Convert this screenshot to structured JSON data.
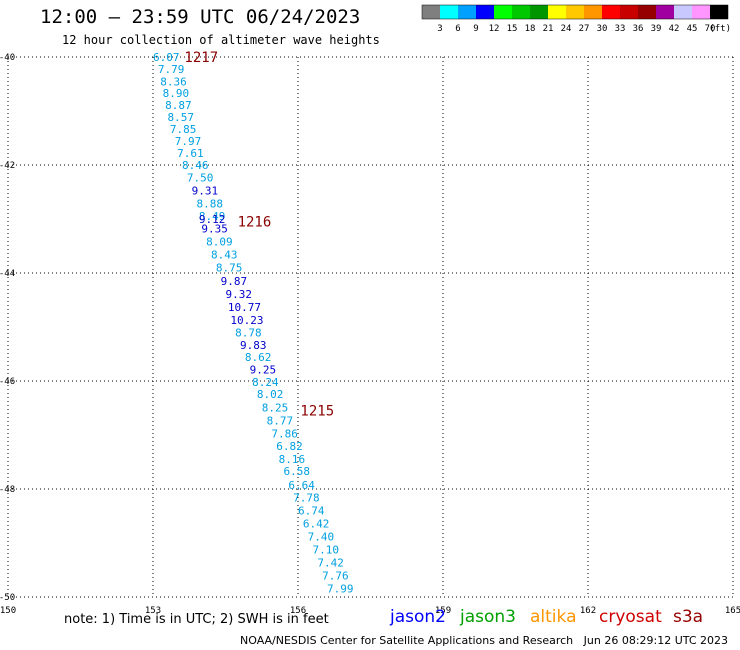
{
  "header": {
    "title": "12:00 — 23:59 UTC 06/24/2023",
    "subtitle": "12 hour collection of altimeter wave heights"
  },
  "legend": {
    "unit": "(ft)",
    "levels": [
      "3",
      "6",
      "9",
      "12",
      "15",
      "18",
      "21",
      "24",
      "27",
      "30",
      "33",
      "36",
      "39",
      "42",
      "45",
      "70"
    ],
    "colors": [
      "#7f7f7f",
      "#00ffff",
      "#00a0ff",
      "#0000ff",
      "#00ff00",
      "#00c800",
      "#009600",
      "#ffff00",
      "#ffc800",
      "#ff9600",
      "#ff0000",
      "#c80000",
      "#960000",
      "#a000a0",
      "#c8c8ff",
      "#ff96ff",
      "#000000"
    ]
  },
  "map": {
    "lon_ticks": [
      "150",
      "153",
      "156",
      "159",
      "162",
      "165"
    ],
    "lat_ticks": [
      "-40",
      "-42",
      "-44",
      "-46",
      "-48",
      "-50"
    ],
    "track_labels": [
      {
        "text": "1217",
        "lon": 153.65,
        "lat": -40.0
      },
      {
        "text": "1216",
        "lon": 154.75,
        "lat": -43.05
      },
      {
        "text": "1215",
        "lon": 156.05,
        "lat": -46.55
      }
    ],
    "wave_heights": [
      {
        "v": "6.07",
        "lon": 153.0,
        "lat": -40.0,
        "color": "#00a0e0"
      },
      {
        "v": "7.79",
        "lon": 153.1,
        "lat": -40.22,
        "color": "#00a0e0"
      },
      {
        "v": "8.36",
        "lon": 153.15,
        "lat": -40.45,
        "color": "#00a0e0"
      },
      {
        "v": "8.90",
        "lon": 153.2,
        "lat": -40.67,
        "color": "#00a0e0"
      },
      {
        "v": "8.87",
        "lon": 153.25,
        "lat": -40.89,
        "color": "#00a0e0"
      },
      {
        "v": "8.57",
        "lon": 153.3,
        "lat": -41.11,
        "color": "#00a0e0"
      },
      {
        "v": "7.85",
        "lon": 153.35,
        "lat": -41.33,
        "color": "#00a0e0"
      },
      {
        "v": "7.97",
        "lon": 153.45,
        "lat": -41.56,
        "color": "#00a0e0"
      },
      {
        "v": "7.61",
        "lon": 153.5,
        "lat": -41.78,
        "color": "#00a0e0"
      },
      {
        "v": "8.46",
        "lon": 153.6,
        "lat": -42.0,
        "color": "#00a0e0"
      },
      {
        "v": "7.50",
        "lon": 153.7,
        "lat": -42.23,
        "color": "#00a0e0"
      },
      {
        "v": "9.31",
        "lon": 153.8,
        "lat": -42.47,
        "color": "#0000cc"
      },
      {
        "v": "8.88",
        "lon": 153.9,
        "lat": -42.71,
        "color": "#00a0e0"
      },
      {
        "v": "8.49",
        "lon": 153.95,
        "lat": -42.94,
        "color": "#00a0e0"
      },
      {
        "v": "9.12",
        "lon": 153.95,
        "lat": -43.0,
        "color": "#0000cc"
      },
      {
        "v": "9.35",
        "lon": 154.0,
        "lat": -43.18,
        "color": "#0000cc"
      },
      {
        "v": "8.09",
        "lon": 154.1,
        "lat": -43.42,
        "color": "#00a0e0"
      },
      {
        "v": "8.43",
        "lon": 154.2,
        "lat": -43.66,
        "color": "#00a0e0"
      },
      {
        "v": "8.75",
        "lon": 154.3,
        "lat": -43.9,
        "color": "#00a0e0"
      },
      {
        "v": "9.87",
        "lon": 154.4,
        "lat": -44.15,
        "color": "#0000cc"
      },
      {
        "v": "9.32",
        "lon": 154.5,
        "lat": -44.39,
        "color": "#0000cc"
      },
      {
        "v": "10.77",
        "lon": 154.55,
        "lat": -44.63,
        "color": "#0000cc"
      },
      {
        "v": "10.23",
        "lon": 154.6,
        "lat": -44.87,
        "color": "#0000cc"
      },
      {
        "v": "8.78",
        "lon": 154.7,
        "lat": -45.1,
        "color": "#00a0e0"
      },
      {
        "v": "9.83",
        "lon": 154.8,
        "lat": -45.33,
        "color": "#0000cc"
      },
      {
        "v": "8.62",
        "lon": 154.9,
        "lat": -45.56,
        "color": "#00a0e0"
      },
      {
        "v": "9.25",
        "lon": 155.0,
        "lat": -45.79,
        "color": "#0000cc"
      },
      {
        "v": "8.24",
        "lon": 155.05,
        "lat": -46.02,
        "color": "#00a0e0"
      },
      {
        "v": "8.02",
        "lon": 155.15,
        "lat": -46.24,
        "color": "#00a0e0"
      },
      {
        "v": "8.25",
        "lon": 155.25,
        "lat": -46.49,
        "color": "#00a0e0"
      },
      {
        "v": "8.77",
        "lon": 155.35,
        "lat": -46.73,
        "color": "#00a0e0"
      },
      {
        "v": "7.86",
        "lon": 155.45,
        "lat": -46.97,
        "color": "#00a0e0"
      },
      {
        "v": "6.82",
        "lon": 155.55,
        "lat": -47.2,
        "color": "#00a0e0"
      },
      {
        "v": "8.16",
        "lon": 155.6,
        "lat": -47.44,
        "color": "#00a0e0"
      },
      {
        "v": "6.58",
        "lon": 155.7,
        "lat": -47.67,
        "color": "#00a0e0"
      },
      {
        "v": "6.64",
        "lon": 155.8,
        "lat": -47.93,
        "color": "#00a0e0"
      },
      {
        "v": "7.78",
        "lon": 155.9,
        "lat": -48.16,
        "color": "#00a0e0"
      },
      {
        "v": "6.74",
        "lon": 156.0,
        "lat": -48.4,
        "color": "#00a0e0"
      },
      {
        "v": "6.42",
        "lon": 156.1,
        "lat": -48.64,
        "color": "#00a0e0"
      },
      {
        "v": "7.40",
        "lon": 156.2,
        "lat": -48.88,
        "color": "#00a0e0"
      },
      {
        "v": "7.10",
        "lon": 156.3,
        "lat": -49.12,
        "color": "#00a0e0"
      },
      {
        "v": "7.42",
        "lon": 156.4,
        "lat": -49.36,
        "color": "#00a0e0"
      },
      {
        "v": "7.76",
        "lon": 156.5,
        "lat": -49.6,
        "color": "#00a0e0"
      },
      {
        "v": "7.99",
        "lon": 156.6,
        "lat": -49.84,
        "color": "#00a0e0"
      }
    ]
  },
  "note": "note: 1) Time is in UTC; 2) SWH is in feet",
  "satellites": [
    {
      "name": "jason2",
      "color": "#0000ff"
    },
    {
      "name": "jason3",
      "color": "#00a000"
    },
    {
      "name": "altika",
      "color": "#ff9600"
    },
    {
      "name": "cryosat",
      "color": "#d00000"
    },
    {
      "name": "s3a",
      "color": "#960000"
    }
  ],
  "footer": {
    "org": "NOAA/NESDIS Center for Satellite Applications and Research",
    "timestamp": "Jun 26 08:29:12 UTC 2023"
  }
}
